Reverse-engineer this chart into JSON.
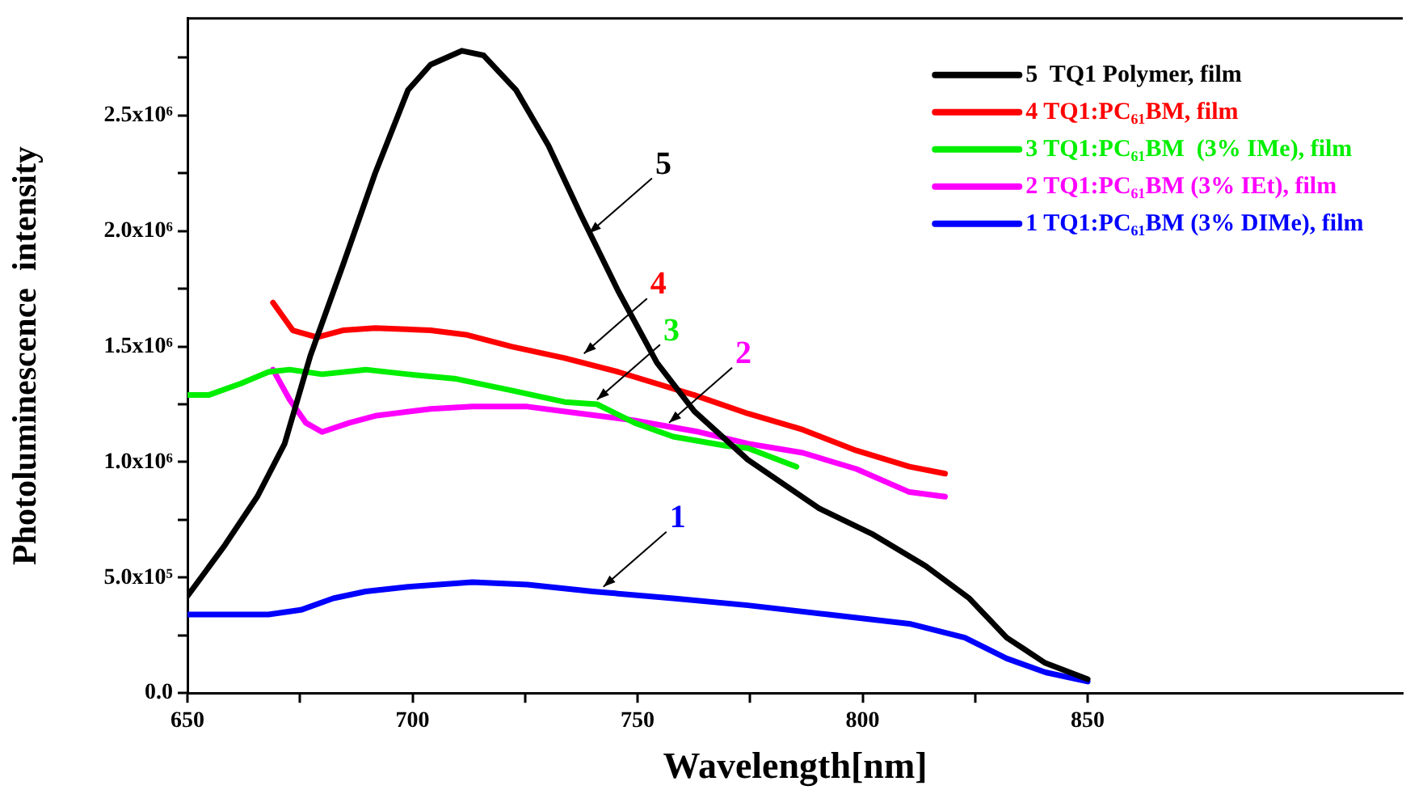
{
  "chart_data": {
    "type": "line",
    "xlabel": "Wavelength[nm]",
    "ylabel": "Photoluminescence  intensity",
    "xlim": [
      650,
      920
    ],
    "xticks": [
      650,
      {
        "value": 675,
        "label": null
      },
      700,
      {
        "value": 725,
        "label": null
      },
      750,
      {
        "value": 775,
        "label": null
      },
      800,
      {
        "value": 825,
        "label": null
      },
      850
    ],
    "ylim": [
      0,
      2920000
    ],
    "yticks": [
      {
        "value": 0,
        "label": "0.0"
      },
      {
        "value": 250000,
        "label": null
      },
      {
        "value": 500000,
        "label": "5.0x10⁵"
      },
      {
        "value": 750000,
        "label": null
      },
      {
        "value": 1000000,
        "label": "1.0x10⁶"
      },
      {
        "value": 1250000,
        "label": null
      },
      {
        "value": 1500000,
        "label": "1.5x10⁶"
      },
      {
        "value": 1750000,
        "label": null
      },
      {
        "value": 2000000,
        "label": "2.0x10⁶"
      },
      {
        "value": 2250000,
        "label": null
      },
      {
        "value": 2500000,
        "label": "2.5x10⁶"
      },
      {
        "value": 2750000,
        "label": null
      }
    ],
    "grid": false,
    "legend": "top right",
    "marker": "none",
    "line_style": "solid",
    "series": [
      {
        "name": "5  TQ1 Polymer, film",
        "color": "#000000",
        "x": [
          650,
          658.3,
          665.5,
          671.6,
          677.3,
          684.5,
          691.7,
          699,
          704,
          711,
          715.8,
          723,
          730.2,
          737.4,
          745.7,
          754.3,
          762.6,
          774.5,
          790.3,
          802,
          814,
          823.7,
          832,
          840.6,
          850
        ],
        "values": [
          420000,
          640000,
          850000,
          1080000,
          1460000,
          1850000,
          2250000,
          2610000,
          2720000,
          2780000,
          2760000,
          2610000,
          2370000,
          2070000,
          1740000,
          1430000,
          1220000,
          1010000,
          800000,
          690000,
          550000,
          410000,
          240000,
          130000,
          60000
        ]
      },
      {
        "name": "4 TQ1:PC₆₁BM, film",
        "color": "#ff0000",
        "x": [
          669,
          673.4,
          678.8,
          684.5,
          691.7,
          704,
          712.2,
          722,
          733.8,
          745.7,
          762.6,
          774.5,
          786.7,
          798.6,
          810.4,
          818.3
        ],
        "values": [
          1690000,
          1570000,
          1540000,
          1570000,
          1580000,
          1570000,
          1550000,
          1500000,
          1450000,
          1390000,
          1290000,
          1210000,
          1140000,
          1050000,
          980000,
          950000
        ]
      },
      {
        "name": "3 TQ1:PC₆₁BM  (3% IMe), film",
        "color": "#00ee00",
        "x": [
          650,
          654.7,
          661.9,
          668,
          672.7,
          679.9,
          689.6,
          699,
          709.7,
          722,
          733.8,
          741,
          749.3,
          757.9,
          769.8,
          774.5,
          785.3
        ],
        "values": [
          1290000,
          1290000,
          1340000,
          1390000,
          1400000,
          1380000,
          1400000,
          1380000,
          1360000,
          1310000,
          1260000,
          1250000,
          1170000,
          1110000,
          1070000,
          1060000,
          980000
        ]
      },
      {
        "name": "2 TQ1:PC₆₁BM (3% IEt), film",
        "color": "#ff00ff",
        "x": [
          669,
          672.7,
          676.3,
          679.9,
          686,
          691.7,
          704,
          713.3,
          725.5,
          737.4,
          749.3,
          763.7,
          774.5,
          786.7,
          798.6,
          810.4,
          818.3
        ],
        "values": [
          1400000,
          1270000,
          1170000,
          1130000,
          1170000,
          1200000,
          1230000,
          1240000,
          1240000,
          1210000,
          1180000,
          1130000,
          1080000,
          1040000,
          970000,
          870000,
          850000
        ]
      },
      {
        "name": "1 TQ1:PC₆₁BM (3% DIMe), film",
        "color": "#0000ff",
        "x": [
          650,
          658.3,
          668,
          675.2,
          682.4,
          689.6,
          699,
          713.3,
          725.5,
          740,
          757.9,
          774.5,
          792.4,
          810.4,
          822.7,
          832,
          840.6,
          850
        ],
        "values": [
          340000,
          340000,
          340000,
          360000,
          410000,
          440000,
          460000,
          480000,
          470000,
          440000,
          410000,
          380000,
          340000,
          300000,
          240000,
          150000,
          90000,
          50000
        ]
      }
    ],
    "annotations": [
      {
        "text": "5",
        "x": 739.2,
        "y": 1990000
      },
      {
        "text": "4",
        "x": 738.1,
        "y": 1470000
      },
      {
        "text": "3",
        "x": 741,
        "y": 1270000
      },
      {
        "text": "2",
        "x": 757,
        "y": 1170000
      },
      {
        "text": "1",
        "x": 742.4,
        "y": 460000
      }
    ]
  }
}
